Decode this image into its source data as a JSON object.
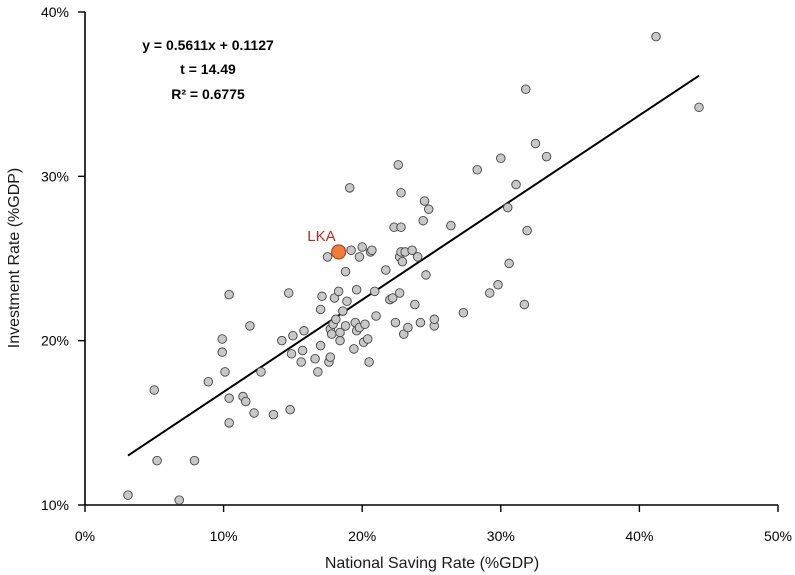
{
  "chart_data": {
    "type": "scatter",
    "title": "",
    "xlabel": "National Saving Rate (%GDP)",
    "ylabel": "Investment Rate (%GDP)",
    "xlim": [
      0,
      0.5
    ],
    "ylim": [
      0.1,
      0.4
    ],
    "x_ticks": [
      "0%",
      "10%",
      "20%",
      "30%",
      "40%",
      "50%"
    ],
    "y_ticks": [
      "10%",
      "20%",
      "30%",
      "40%"
    ],
    "grid": false,
    "annotations": {
      "equation": "y = 0.5611x + 0.1127",
      "t_stat": "t = 14.49",
      "r_squared": "R² = 0.6775"
    },
    "trendline": {
      "slope": 0.5611,
      "intercept": 0.1127,
      "x_start": 0.031,
      "x_end": 0.443
    },
    "highlight": {
      "label": "LKA",
      "x": 0.183,
      "y": 0.254,
      "color": "#f07d3c",
      "label_color": "#c0281f"
    },
    "point_color": "#c8c8c8",
    "points": [
      [
        0.031,
        0.106
      ],
      [
        0.052,
        0.127
      ],
      [
        0.05,
        0.17
      ],
      [
        0.068,
        0.103
      ],
      [
        0.079,
        0.127
      ],
      [
        0.089,
        0.175
      ],
      [
        0.099,
        0.201
      ],
      [
        0.099,
        0.193
      ],
      [
        0.101,
        0.181
      ],
      [
        0.104,
        0.228
      ],
      [
        0.104,
        0.165
      ],
      [
        0.104,
        0.15
      ],
      [
        0.114,
        0.166
      ],
      [
        0.116,
        0.163
      ],
      [
        0.119,
        0.209
      ],
      [
        0.122,
        0.156
      ],
      [
        0.127,
        0.181
      ],
      [
        0.136,
        0.155
      ],
      [
        0.142,
        0.2
      ],
      [
        0.147,
        0.229
      ],
      [
        0.148,
        0.158
      ],
      [
        0.149,
        0.192
      ],
      [
        0.15,
        0.203
      ],
      [
        0.157,
        0.194
      ],
      [
        0.156,
        0.187
      ],
      [
        0.158,
        0.206
      ],
      [
        0.166,
        0.189
      ],
      [
        0.168,
        0.181
      ],
      [
        0.17,
        0.197
      ],
      [
        0.17,
        0.219
      ],
      [
        0.171,
        0.227
      ],
      [
        0.175,
        0.251
      ],
      [
        0.176,
        0.187
      ],
      [
        0.177,
        0.19
      ],
      [
        0.177,
        0.207
      ],
      [
        0.178,
        0.204
      ],
      [
        0.179,
        0.21
      ],
      [
        0.18,
        0.226
      ],
      [
        0.181,
        0.213
      ],
      [
        0.183,
        0.23
      ],
      [
        0.184,
        0.2
      ],
      [
        0.184,
        0.205
      ],
      [
        0.186,
        0.218
      ],
      [
        0.188,
        0.209
      ],
      [
        0.188,
        0.242
      ],
      [
        0.189,
        0.224
      ],
      [
        0.191,
        0.293
      ],
      [
        0.192,
        0.255
      ],
      [
        0.194,
        0.195
      ],
      [
        0.195,
        0.211
      ],
      [
        0.196,
        0.231
      ],
      [
        0.196,
        0.206
      ],
      [
        0.198,
        0.208
      ],
      [
        0.198,
        0.251
      ],
      [
        0.2,
        0.257
      ],
      [
        0.201,
        0.199
      ],
      [
        0.202,
        0.21
      ],
      [
        0.204,
        0.201
      ],
      [
        0.205,
        0.187
      ],
      [
        0.206,
        0.254
      ],
      [
        0.207,
        0.255
      ],
      [
        0.209,
        0.23
      ],
      [
        0.21,
        0.215
      ],
      [
        0.217,
        0.243
      ],
      [
        0.22,
        0.225
      ],
      [
        0.222,
        0.226
      ],
      [
        0.223,
        0.269
      ],
      [
        0.224,
        0.211
      ],
      [
        0.226,
        0.307
      ],
      [
        0.227,
        0.251
      ],
      [
        0.227,
        0.229
      ],
      [
        0.228,
        0.269
      ],
      [
        0.228,
        0.29
      ],
      [
        0.228,
        0.254
      ],
      [
        0.229,
        0.248
      ],
      [
        0.23,
        0.204
      ],
      [
        0.231,
        0.254
      ],
      [
        0.233,
        0.208
      ],
      [
        0.236,
        0.255
      ],
      [
        0.238,
        0.222
      ],
      [
        0.24,
        0.251
      ],
      [
        0.242,
        0.211
      ],
      [
        0.244,
        0.273
      ],
      [
        0.245,
        0.285
      ],
      [
        0.246,
        0.24
      ],
      [
        0.248,
        0.28
      ],
      [
        0.252,
        0.209
      ],
      [
        0.252,
        0.213
      ],
      [
        0.264,
        0.27
      ],
      [
        0.273,
        0.217
      ],
      [
        0.283,
        0.304
      ],
      [
        0.292,
        0.229
      ],
      [
        0.298,
        0.234
      ],
      [
        0.3,
        0.311
      ],
      [
        0.305,
        0.281
      ],
      [
        0.306,
        0.247
      ],
      [
        0.311,
        0.295
      ],
      [
        0.317,
        0.222
      ],
      [
        0.318,
        0.353
      ],
      [
        0.319,
        0.267
      ],
      [
        0.325,
        0.32
      ],
      [
        0.333,
        0.312
      ],
      [
        0.412,
        0.385
      ],
      [
        0.443,
        0.342
      ]
    ]
  }
}
